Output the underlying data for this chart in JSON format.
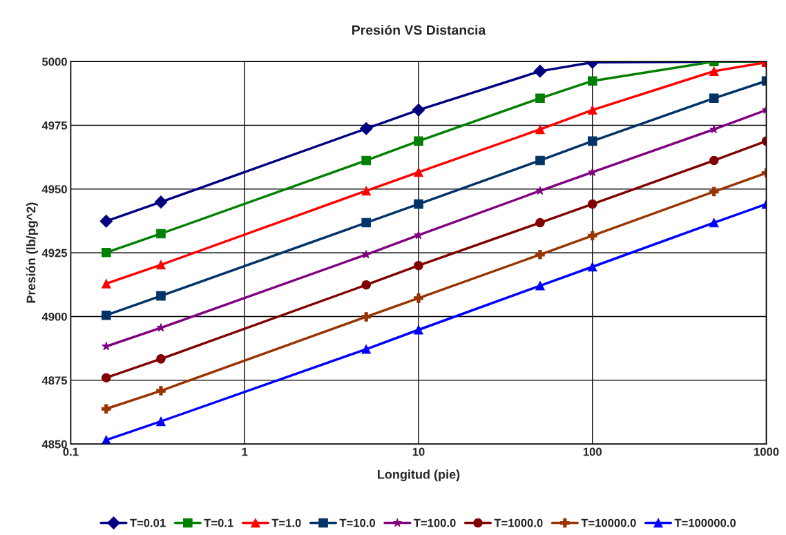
{
  "chart_data": {
    "type": "line",
    "title": "Presión VS Distancia",
    "xlabel": "Longitud (pie)",
    "ylabel": "Presión (lb/pg^2)",
    "x": [
      0.16,
      0.33,
      5,
      10,
      50,
      100,
      500,
      1000
    ],
    "series": [
      {
        "name": "T=0.01",
        "color": "#000080",
        "marker": "diamond",
        "values": [
          4937.4,
          4944.9,
          4973.7,
          4981.0,
          4996.2,
          4999.7,
          null,
          5000
        ]
      },
      {
        "name": "T=0.1",
        "color": "#008000",
        "marker": "square",
        "values": [
          4925.1,
          4932.5,
          4961.2,
          4968.8,
          4985.6,
          4992.4,
          5000,
          5000
        ]
      },
      {
        "name": "T=1.0",
        "color": "#ff0000",
        "marker": "triangle",
        "values": [
          4912.9,
          4920.3,
          4949.3,
          4956.6,
          4973.4,
          4981.0,
          4996.2,
          4999.7
        ]
      },
      {
        "name": "T=10.0",
        "color": "#003366",
        "marker": "square",
        "values": [
          4900.5,
          4908.1,
          4936.8,
          4944.1,
          4961.2,
          4968.8,
          4985.6,
          4992.4
        ]
      },
      {
        "name": "T=100.0",
        "color": "#800080",
        "marker": "star",
        "values": [
          4888.3,
          4895.6,
          4924.3,
          4931.9,
          4949.3,
          4956.6,
          4973.4,
          4981.0
        ]
      },
      {
        "name": "T=1000.0",
        "color": "#800000",
        "marker": "circle",
        "values": [
          4876.0,
          4883.4,
          4912.4,
          4920.0,
          4936.8,
          4944.1,
          4961.2,
          4968.8
        ]
      },
      {
        "name": "T=10000.0",
        "color": "#993300",
        "marker": "cross",
        "values": [
          4863.8,
          4870.9,
          4899.9,
          4907.2,
          4924.3,
          4931.7,
          4949.0,
          4956.3
        ]
      },
      {
        "name": "T=100000.0",
        "color": "#0000ff",
        "marker": "triangle",
        "values": [
          4851.6,
          4858.9,
          4887.2,
          4894.8,
          4912.1,
          4919.5,
          4936.8,
          4944.1
        ]
      }
    ],
    "log": "x",
    "xlim": [
      0.1,
      1000
    ],
    "xticks": [
      0.1,
      1,
      10,
      100,
      1000
    ],
    "ylim": [
      4850,
      5000
    ],
    "yticks": [
      4850,
      4875,
      4900,
      4925,
      4950,
      4975,
      5000
    ],
    "grid": true,
    "legend": "bottom",
    "line_style": "solid"
  }
}
